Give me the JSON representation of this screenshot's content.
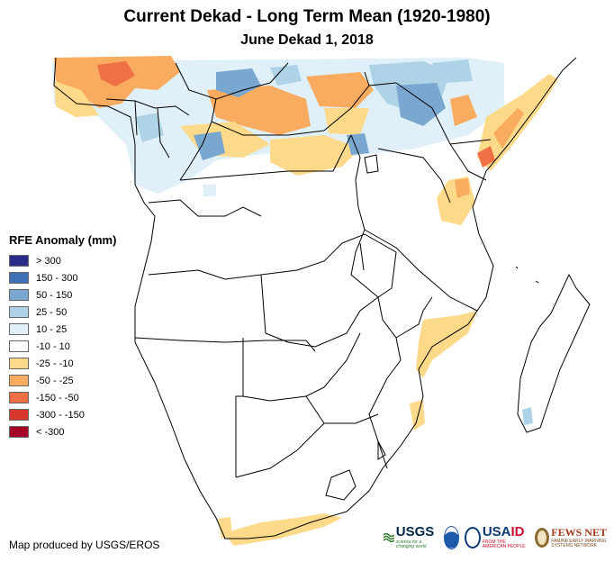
{
  "title": "Current Dekad - Long Term Mean (1920-1980)",
  "subtitle": "June Dekad 1, 2018",
  "legend": {
    "title": "RFE Anomaly (mm)",
    "items": [
      {
        "label": "> 300",
        "color": "#2b2c8a"
      },
      {
        "label": "150 - 300",
        "color": "#3f6fb5"
      },
      {
        "label": "50 - 150",
        "color": "#79a7cf"
      },
      {
        "label": "25 - 50",
        "color": "#aed3e7"
      },
      {
        "label": "10 - 25",
        "color": "#dff0f8"
      },
      {
        "label": "-10 - 10",
        "color": "#ffffff"
      },
      {
        "label": "-25 - -10",
        "color": "#fdd98a"
      },
      {
        "label": "-50 - -25",
        "color": "#f9ab5f"
      },
      {
        "label": "-150 - -50",
        "color": "#f07046"
      },
      {
        "label": "-300 - -150",
        "color": "#d7362a"
      },
      {
        "label": "< -300",
        "color": "#a50026"
      }
    ]
  },
  "credit": "Map produced by USGS/EROS",
  "logos": {
    "usgs": {
      "name": "USGS",
      "tagline": "science for a changing world"
    },
    "usaid": {
      "name_a": "USA",
      "name_b": "ID",
      "tagline": "FROM THE AMERICAN PEOPLE"
    },
    "fews": {
      "name": "FEWS NET",
      "tagline": "FAMINE EARLY WARNING SYSTEMS NETWORK"
    }
  }
}
